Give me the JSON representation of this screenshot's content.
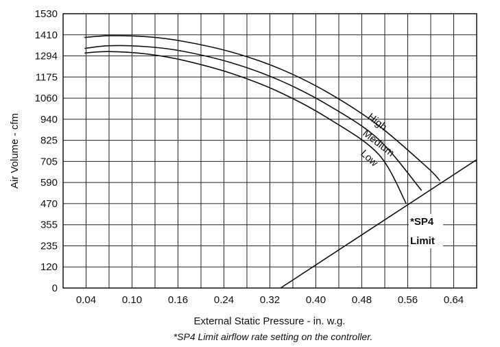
{
  "chart_data": {
    "type": "line",
    "title": "",
    "xlabel": "External Static Pressure - in. w.g.",
    "ylabel": "Air Volume - cfm",
    "footnote": "*SP4 Limit airflow rate setting on the controller.",
    "grid": true,
    "x_tick_labels": [
      "0.04",
      "0.10",
      "0.16",
      "0.24",
      "0.32",
      "0.40",
      "0.48",
      "0.56",
      "0.64"
    ],
    "y_tick_labels": [
      "0",
      "120",
      "235",
      "355",
      "470",
      "590",
      "705",
      "825",
      "940",
      "1060",
      "1175",
      "1294",
      "1410",
      "1530"
    ],
    "series": [
      {
        "name": "High",
        "points": [
          [
            0,
            1395
          ],
          [
            0.04,
            1405
          ],
          [
            0.1,
            1400
          ],
          [
            0.16,
            1375
          ],
          [
            0.24,
            1315
          ],
          [
            0.32,
            1220
          ],
          [
            0.4,
            1085
          ],
          [
            0.48,
            905
          ],
          [
            0.56,
            670
          ],
          [
            0.58,
            600
          ]
        ]
      },
      {
        "name": "Medium",
        "points": [
          [
            0,
            1335
          ],
          [
            0.04,
            1350
          ],
          [
            0.1,
            1345
          ],
          [
            0.16,
            1320
          ],
          [
            0.24,
            1255
          ],
          [
            0.32,
            1155
          ],
          [
            0.4,
            1015
          ],
          [
            0.48,
            830
          ],
          [
            0.55,
            545
          ]
        ]
      },
      {
        "name": "Low",
        "points": [
          [
            0,
            1310
          ],
          [
            0.04,
            1318
          ],
          [
            0.1,
            1305
          ],
          [
            0.16,
            1270
          ],
          [
            0.24,
            1195
          ],
          [
            0.32,
            1090
          ],
          [
            0.4,
            940
          ],
          [
            0.48,
            745
          ],
          [
            0.525,
            470
          ]
        ]
      },
      {
        "name": "*SP4 Limit",
        "label_lines": [
          "*SP4",
          "Limit"
        ],
        "points": [
          [
            0.32,
            0
          ],
          [
            0.64,
            715
          ]
        ]
      }
    ]
  }
}
